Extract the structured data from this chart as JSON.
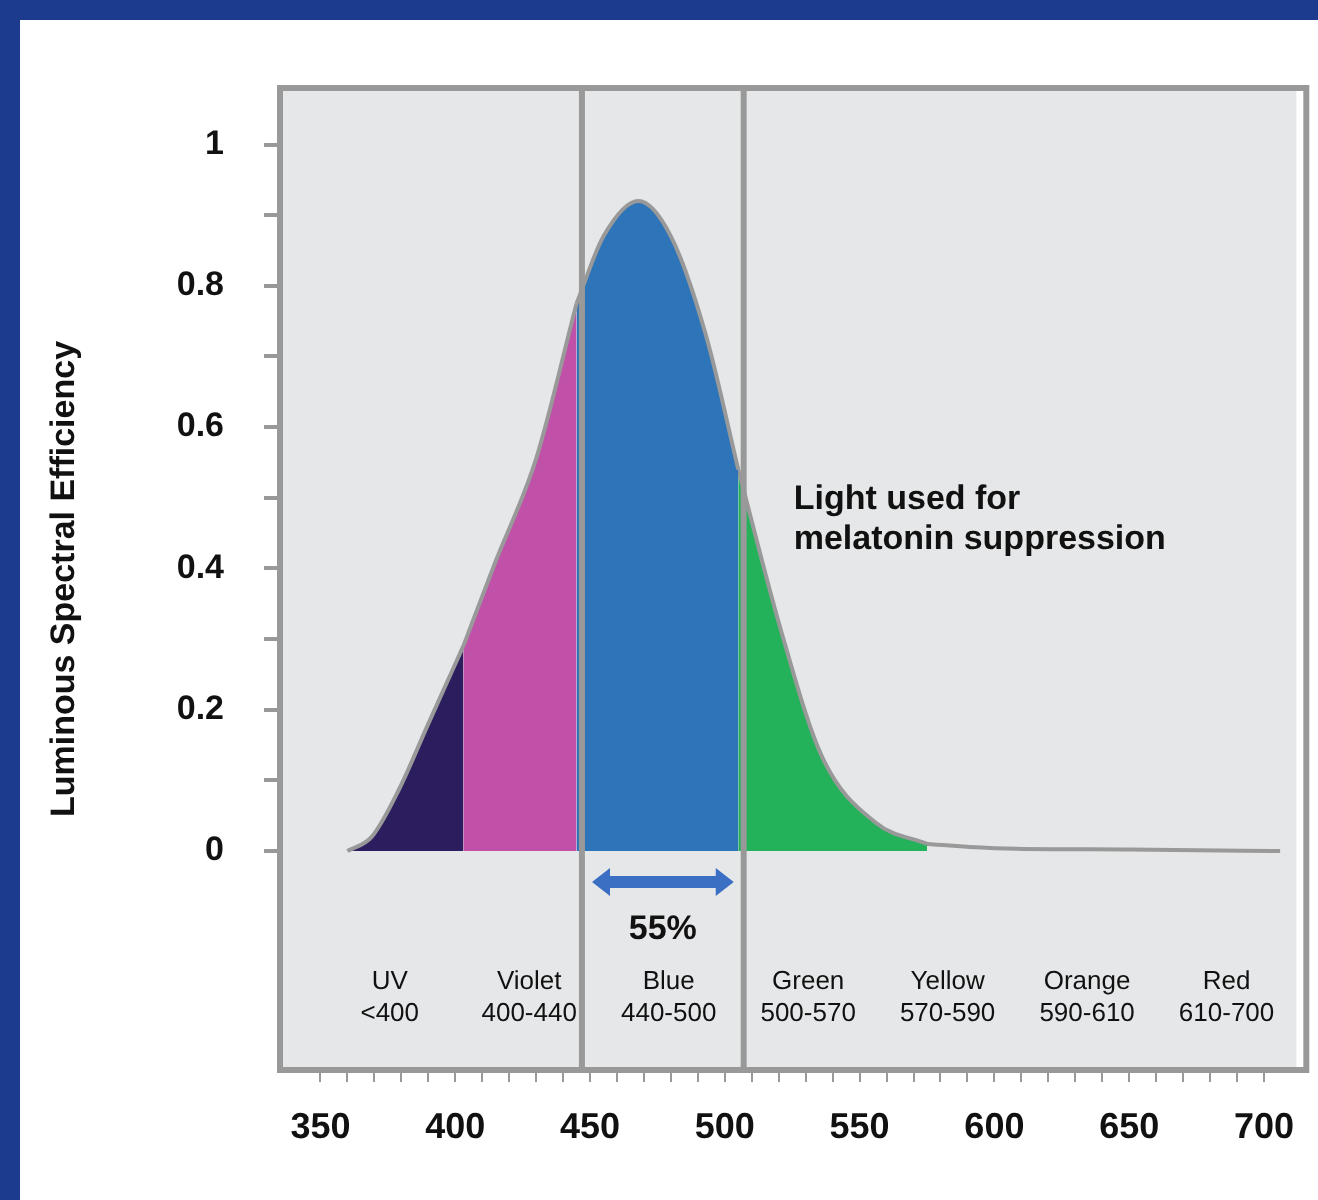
{
  "chart_data": {
    "type": "area",
    "ylabel": "Luminous Spectral Efficiency",
    "series": [
      {
        "color": "#2b1d5e",
        "x": [
          360,
          369,
          379,
          390,
          403
        ],
        "values": [
          0,
          0.02,
          0.086,
          0.18,
          0.29
        ]
      },
      {
        "color": "#c050a8",
        "x": [
          403,
          415,
          430,
          445
        ],
        "values": [
          0.29,
          0.41,
          0.555,
          0.775
        ]
      },
      {
        "color": "#2d74b9",
        "x": [
          445,
          455,
          468,
          480,
          493,
          505
        ],
        "values": [
          0.775,
          0.87,
          0.92,
          0.87,
          0.73,
          0.54
        ]
      },
      {
        "color": "#23b25a",
        "x": [
          505,
          521,
          536,
          556,
          575
        ],
        "values": [
          0.54,
          0.31,
          0.134,
          0.04,
          0.01
        ]
      },
      {
        "type": "line",
        "color": "#999999",
        "x": [
          575,
          600,
          650,
          706
        ],
        "values": [
          0.01,
          0.004,
          0.002,
          0
        ]
      }
    ],
    "xlim": [
      335,
      712
    ],
    "ylim": [
      -0.31,
      1.08
    ],
    "xticks": [
      350,
      {
        "value": 360,
        "label": null
      },
      {
        "value": 370,
        "label": null
      },
      {
        "value": 380,
        "label": null
      },
      {
        "value": 390,
        "label": null
      },
      400,
      {
        "value": 410,
        "label": null
      },
      {
        "value": 420,
        "label": null
      },
      {
        "value": 430,
        "label": null
      },
      {
        "value": 440,
        "label": null
      },
      450,
      {
        "value": 460,
        "label": null
      },
      {
        "value": 470,
        "label": null
      },
      {
        "value": 480,
        "label": null
      },
      {
        "value": 490,
        "label": null
      },
      500,
      {
        "value": 510,
        "label": null
      },
      {
        "value": 520,
        "label": null
      },
      {
        "value": 530,
        "label": null
      },
      {
        "value": 540,
        "label": null
      },
      550,
      {
        "value": 560,
        "label": null
      },
      {
        "value": 570,
        "label": null
      },
      {
        "value": 580,
        "label": null
      },
      {
        "value": 590,
        "label": null
      },
      600,
      {
        "value": 610,
        "label": null
      },
      {
        "value": 620,
        "label": null
      },
      {
        "value": 630,
        "label": null
      },
      {
        "value": 640,
        "label": null
      },
      650,
      {
        "value": 660,
        "label": null
      },
      {
        "value": 670,
        "label": null
      },
      {
        "value": 680,
        "label": null
      },
      {
        "value": 690,
        "label": null
      },
      700
    ],
    "yticks": [
      0,
      {
        "value": 0.1,
        "label": null
      },
      0.2,
      {
        "value": 0.3,
        "label": null
      },
      0.4,
      {
        "value": 0.5,
        "label": null
      },
      0.6,
      {
        "value": 0.7,
        "label": null
      },
      0.8,
      {
        "value": 0.9,
        "label": null
      },
      1
    ],
    "ref_lines": [
      {
        "axis": "x",
        "value": 447,
        "color": "#999999"
      },
      {
        "axis": "x",
        "value": 507,
        "color": "#999999"
      }
    ],
    "annotations": [
      "Light used for\nmelatonin suppression",
      "55%",
      "UV\n<400",
      "Violet\n400-440",
      "Blue\n440-500",
      "Green\n500-570",
      "Yellow\n570-590",
      "Orange\n590-610",
      "Red\n610-700"
    ]
  }
}
